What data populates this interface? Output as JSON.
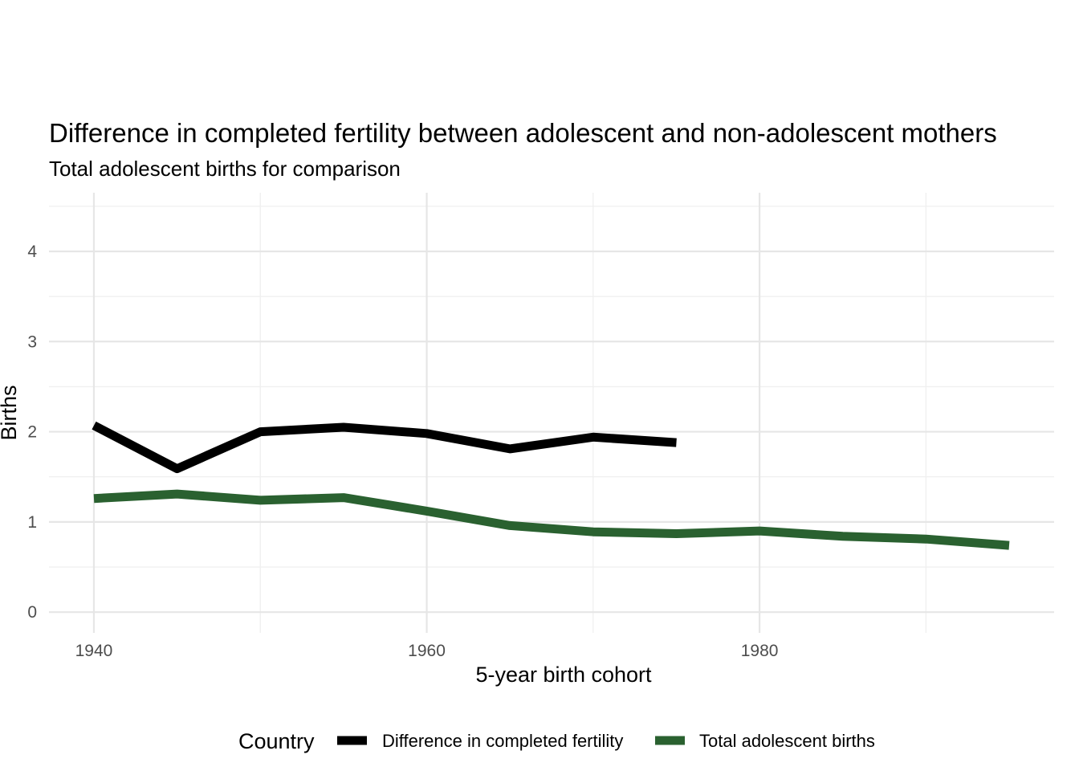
{
  "chart_data": {
    "type": "line",
    "title": "Difference in completed fertility between adolescent and non-adolescent mothers",
    "subtitle": "Total adolescent births for comparison",
    "xlabel": "5-year birth cohort",
    "ylabel": "Births",
    "xlim": [
      1937.3,
      1997.7
    ],
    "ylim": [
      -0.23,
      4.65
    ],
    "xticks": [
      1940,
      1960,
      1980
    ],
    "xtick_labels": [
      "1940",
      "1960",
      "1980"
    ],
    "xminor": [
      1950,
      1970,
      1990
    ],
    "yticks": [
      0,
      1,
      2,
      3,
      4
    ],
    "ytick_labels": [
      "0",
      "1",
      "2",
      "3",
      "4"
    ],
    "yminor": [
      0.5,
      1.5,
      2.5,
      3.5,
      4.5
    ],
    "grid": true,
    "legend": {
      "title": "Country",
      "position": "bottom"
    },
    "series": [
      {
        "name": "Difference in completed fertility",
        "color": "#000000",
        "x": [
          1940,
          1945,
          1950,
          1955,
          1960,
          1965,
          1970,
          1975
        ],
        "y": [
          2.07,
          1.59,
          2.0,
          2.05,
          1.98,
          1.81,
          1.94,
          1.88
        ]
      },
      {
        "name": "Total adolescent births",
        "color": "#2a6130",
        "x": [
          1940,
          1945,
          1950,
          1955,
          1960,
          1965,
          1970,
          1975,
          1980,
          1985,
          1990,
          1995
        ],
        "y": [
          1.26,
          1.31,
          1.24,
          1.27,
          1.12,
          0.96,
          0.89,
          0.87,
          0.9,
          0.84,
          0.81,
          0.74
        ]
      }
    ]
  }
}
